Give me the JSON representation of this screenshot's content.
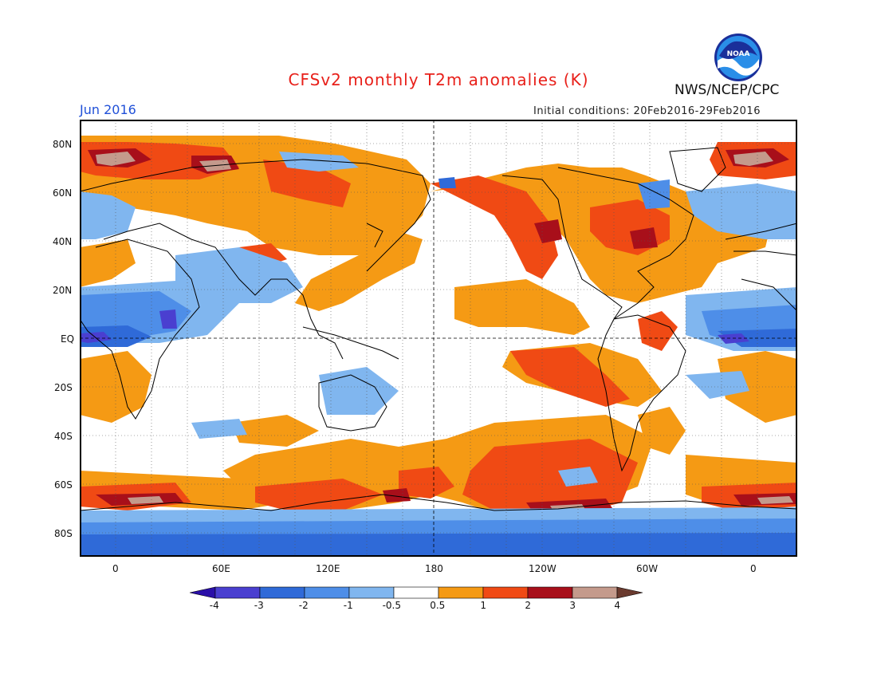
{
  "header": {
    "title": "CFSv2 monthly T2m anomalies (K)",
    "organization": "NWS/NCEP/CPC",
    "logo_text": "NOAA",
    "valid_month": "Jun 2016",
    "initial_conditions": "Initial conditions: 20Feb2016-29Feb2016"
  },
  "map": {
    "projection": "equirectangular, longitude -20 to 380 (centered on 180)",
    "grid": "dotted gridlines every 20 degrees; dashed equator and 180 meridian",
    "lat_labels": [
      "80N",
      "60N",
      "40N",
      "20N",
      "EQ",
      "20S",
      "40S",
      "60S",
      "80S"
    ],
    "lon_labels": [
      "0",
      "60E",
      "120E",
      "180",
      "120W",
      "60W",
      "0"
    ]
  },
  "colorbar": {
    "levels": [
      "-4",
      "-3",
      "-2",
      "-1",
      "-0.5",
      "0.5",
      "1",
      "2",
      "3",
      "4"
    ],
    "colors": [
      "#2a0fa8",
      "#4a3fd0",
      "#2f6ad8",
      "#4e8ee8",
      "#80b6ef",
      "#ffffff",
      "#f59a14",
      "#f04a14",
      "#a80f1a",
      "#c49a8c",
      "#6a3a2e"
    ]
  },
  "colors": {
    "title": "#e8201a",
    "month": "#2050d8",
    "warm_light": "#f59a14",
    "warm_mid": "#f04a14",
    "warm_dark": "#a80f1a",
    "warm_extreme": "#c49a8c",
    "cool_light": "#80b6ef",
    "cool_mid": "#4e8ee8",
    "cool_dark": "#2f6ad8",
    "cool_deep": "#4a3fd0"
  }
}
